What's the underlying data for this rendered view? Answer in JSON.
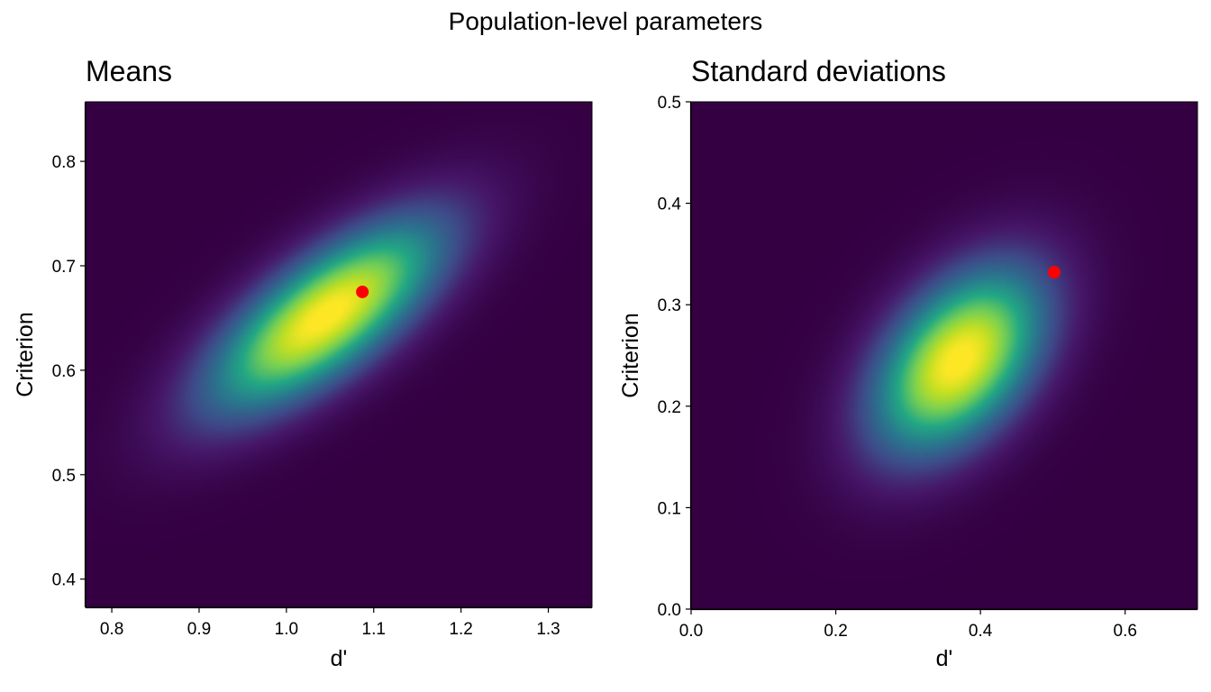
{
  "figure": {
    "title": "Population-level parameters"
  },
  "chart_data": [
    {
      "type": "heatmap",
      "title": "Means",
      "xlabel": "d'",
      "ylabel": "Criterion",
      "xlim": [
        0.77,
        1.35
      ],
      "ylim": [
        0.373,
        0.857
      ],
      "xticks": [
        0.8,
        0.9,
        1.0,
        1.1,
        1.2,
        1.3
      ],
      "xtick_labels": [
        "0.8",
        "0.9",
        "1.0",
        "1.1",
        "1.2",
        "1.3"
      ],
      "yticks": [
        0.4,
        0.5,
        0.6,
        0.7,
        0.8
      ],
      "ytick_labels": [
        "0.4",
        "0.5",
        "0.6",
        "0.7",
        "0.8"
      ],
      "colormap": "viridis",
      "background_color": "#340042",
      "density": {
        "center_x": 1.045,
        "center_y": 0.652,
        "sd_x": 0.085,
        "sd_y": 0.058,
        "correlation": 0.72
      },
      "point": {
        "x": 1.087,
        "y": 0.675,
        "color": "#ff0000"
      }
    },
    {
      "type": "heatmap",
      "title": "Standard deviations",
      "xlabel": "d'",
      "ylabel": "Criterion",
      "xlim": [
        0.0,
        0.7
      ],
      "ylim": [
        0.0,
        0.5
      ],
      "xticks": [
        0.0,
        0.2,
        0.4,
        0.6
      ],
      "xtick_labels": [
        "0.0",
        "0.2",
        "0.4",
        "0.6"
      ],
      "yticks": [
        0.0,
        0.1,
        0.2,
        0.3,
        0.4,
        0.5
      ],
      "ytick_labels": [
        "0.0",
        "0.1",
        "0.2",
        "0.3",
        "0.4",
        "0.5"
      ],
      "colormap": "viridis",
      "background_color": "#340042",
      "density": {
        "center_x": 0.37,
        "center_y": 0.245,
        "sd_x": 0.075,
        "sd_y": 0.058,
        "correlation": 0.45
      },
      "point": {
        "x": 0.502,
        "y": 0.332,
        "color": "#ff0000"
      }
    }
  ]
}
